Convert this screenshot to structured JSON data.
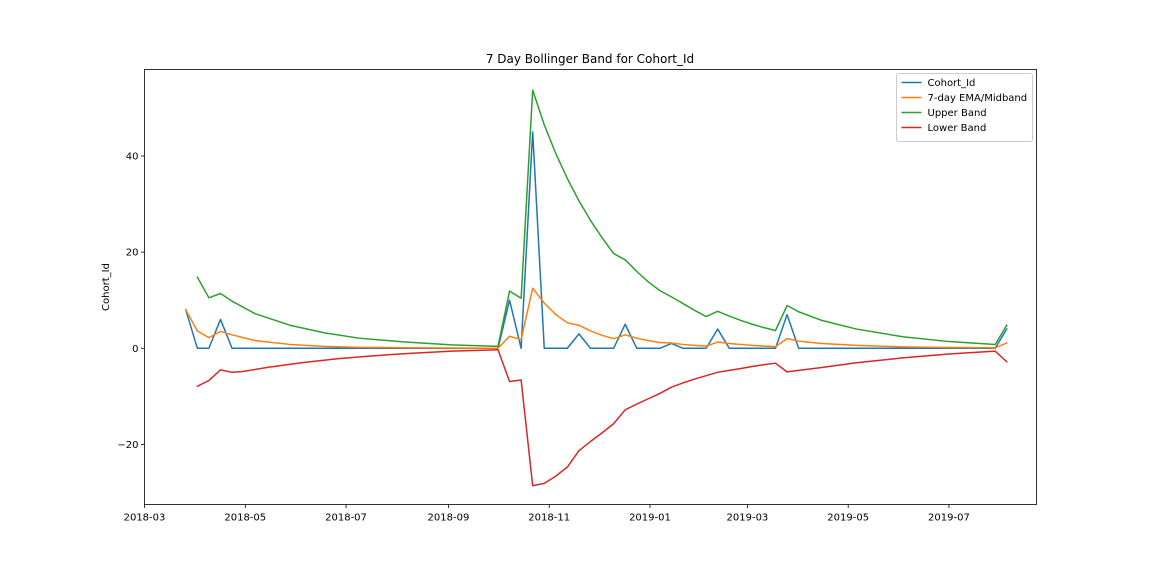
{
  "chart_data": {
    "type": "line",
    "title": "7 Day Bollinger Band for Cohort_Id",
    "xlabel": "",
    "ylabel": "Cohort_Id",
    "xlim": [
      "2018-03-01",
      "2019-08-23"
    ],
    "ylim": [
      -32.5,
      58
    ],
    "x_ticks": [
      "2018-03",
      "2018-05",
      "2018-07",
      "2018-09",
      "2018-11",
      "2019-01",
      "2019-03",
      "2019-05",
      "2019-07"
    ],
    "y_ticks": [
      -20,
      0,
      20,
      40
    ],
    "y_tick_labels": [
      "−20",
      "0",
      "20",
      "40"
    ],
    "grid": false,
    "legend_position": "top-right",
    "series": [
      {
        "name": "Cohort_Id",
        "color": "#1f77b4",
        "x": [
          "2018-03-26",
          "2018-04-02",
          "2018-04-09",
          "2018-04-16",
          "2018-04-23",
          "2018-10-01",
          "2018-10-08",
          "2018-10-15",
          "2018-10-22",
          "2018-10-29",
          "2018-11-12",
          "2018-11-19",
          "2018-11-26",
          "2018-12-10",
          "2018-12-17",
          "2018-12-24",
          "2019-01-07",
          "2019-01-14",
          "2019-01-21",
          "2019-02-04",
          "2019-02-11",
          "2019-02-18",
          "2019-03-18",
          "2019-03-25",
          "2019-04-01",
          "2019-07-29",
          "2019-08-05"
        ],
        "values": [
          8,
          0,
          0,
          6,
          0,
          0,
          10,
          0,
          45,
          0,
          0,
          3,
          0,
          0,
          5,
          0,
          0,
          1,
          0,
          0,
          4,
          0,
          0,
          7,
          0,
          0,
          4
        ]
      },
      {
        "name": "7-day EMA/Midband",
        "color": "#ff7f0e",
        "x": [
          "2018-03-26",
          "2018-04-02",
          "2018-04-09",
          "2018-04-16",
          "2018-04-23",
          "2018-05-07",
          "2018-05-28",
          "2018-06-18",
          "2018-07-09",
          "2018-08-06",
          "2018-09-03",
          "2018-10-01",
          "2018-10-08",
          "2018-10-15",
          "2018-10-22",
          "2018-10-29",
          "2018-11-05",
          "2018-11-12",
          "2018-11-19",
          "2018-11-26",
          "2018-12-03",
          "2018-12-10",
          "2018-12-17",
          "2018-12-24",
          "2018-12-31",
          "2019-01-07",
          "2019-01-14",
          "2019-01-21",
          "2019-01-28",
          "2019-02-04",
          "2019-02-11",
          "2019-02-18",
          "2019-02-25",
          "2019-03-04",
          "2019-03-11",
          "2019-03-18",
          "2019-03-25",
          "2019-04-01",
          "2019-04-15",
          "2019-05-06",
          "2019-06-03",
          "2019-07-01",
          "2019-07-29",
          "2019-08-05"
        ],
        "values": [
          8,
          3.6,
          2.2,
          3.5,
          2.8,
          1.6,
          0.8,
          0.4,
          0.2,
          0.1,
          0.05,
          0.0,
          2.5,
          1.8,
          12.5,
          9.4,
          7.0,
          5.3,
          4.8,
          3.6,
          2.7,
          2.0,
          2.8,
          2.1,
          1.6,
          1.2,
          1.1,
          0.8,
          0.6,
          0.45,
          1.3,
          1.0,
          0.8,
          0.6,
          0.45,
          0.35,
          2.0,
          1.5,
          1.0,
          0.6,
          0.3,
          0.15,
          0.1,
          1.1
        ]
      },
      {
        "name": "Upper Band",
        "color": "#2ca02c",
        "x": [
          "2018-04-02",
          "2018-04-09",
          "2018-04-16",
          "2018-04-23",
          "2018-05-07",
          "2018-05-28",
          "2018-06-18",
          "2018-07-09",
          "2018-08-06",
          "2018-09-03",
          "2018-10-01",
          "2018-10-08",
          "2018-10-15",
          "2018-10-22",
          "2018-10-29",
          "2018-11-05",
          "2018-11-12",
          "2018-11-19",
          "2018-11-26",
          "2018-12-03",
          "2018-12-10",
          "2018-12-17",
          "2018-12-24",
          "2018-12-31",
          "2019-01-07",
          "2019-01-14",
          "2019-01-21",
          "2019-01-28",
          "2019-02-04",
          "2019-02-11",
          "2019-02-18",
          "2019-02-25",
          "2019-03-04",
          "2019-03-11",
          "2019-03-18",
          "2019-03-25",
          "2019-04-01",
          "2019-04-15",
          "2019-05-06",
          "2019-06-03",
          "2019-07-01",
          "2019-07-29",
          "2019-08-05"
        ],
        "values": [
          14.8,
          10.5,
          11.4,
          9.8,
          7.2,
          4.8,
          3.2,
          2.1,
          1.3,
          0.7,
          0.4,
          11.9,
          10.4,
          53.7,
          46.5,
          40.5,
          35.3,
          30.7,
          26.6,
          23.0,
          19.7,
          18.4,
          16.0,
          13.8,
          12.0,
          10.7,
          9.3,
          7.9,
          6.6,
          7.7,
          6.7,
          5.8,
          5.0,
          4.3,
          3.7,
          8.9,
          7.6,
          5.8,
          4.0,
          2.4,
          1.4,
          0.8,
          4.8
        ]
      },
      {
        "name": "Lower Band",
        "color": "#d62728",
        "x": [
          "2018-04-02",
          "2018-04-09",
          "2018-04-16",
          "2018-04-23",
          "2018-04-30",
          "2018-05-14",
          "2018-06-04",
          "2018-06-25",
          "2018-07-16",
          "2018-08-06",
          "2018-09-03",
          "2018-10-01",
          "2018-10-08",
          "2018-10-15",
          "2018-10-22",
          "2018-10-29",
          "2018-11-05",
          "2018-11-12",
          "2018-11-19",
          "2018-11-26",
          "2018-12-03",
          "2018-12-10",
          "2018-12-17",
          "2018-12-24",
          "2018-12-31",
          "2019-01-07",
          "2019-01-14",
          "2019-01-21",
          "2019-01-28",
          "2019-02-04",
          "2019-02-11",
          "2019-02-18",
          "2019-02-25",
          "2019-03-04",
          "2019-03-11",
          "2019-03-18",
          "2019-03-25",
          "2019-04-01",
          "2019-04-15",
          "2019-05-06",
          "2019-06-03",
          "2019-07-01",
          "2019-07-29",
          "2019-08-05"
        ],
        "values": [
          -7.9,
          -6.7,
          -4.5,
          -5.0,
          -4.8,
          -4.0,
          -3.0,
          -2.2,
          -1.6,
          -1.1,
          -0.6,
          -0.3,
          -6.9,
          -6.6,
          -28.6,
          -28.1,
          -26.6,
          -24.7,
          -21.3,
          -19.4,
          -17.6,
          -15.7,
          -12.8,
          -11.6,
          -10.5,
          -9.4,
          -8.1,
          -7.2,
          -6.4,
          -5.7,
          -5.0,
          -4.6,
          -4.2,
          -3.8,
          -3.4,
          -3.1,
          -4.9,
          -4.6,
          -4.0,
          -3.0,
          -2.0,
          -1.2,
          -0.6,
          -2.8
        ]
      }
    ]
  }
}
